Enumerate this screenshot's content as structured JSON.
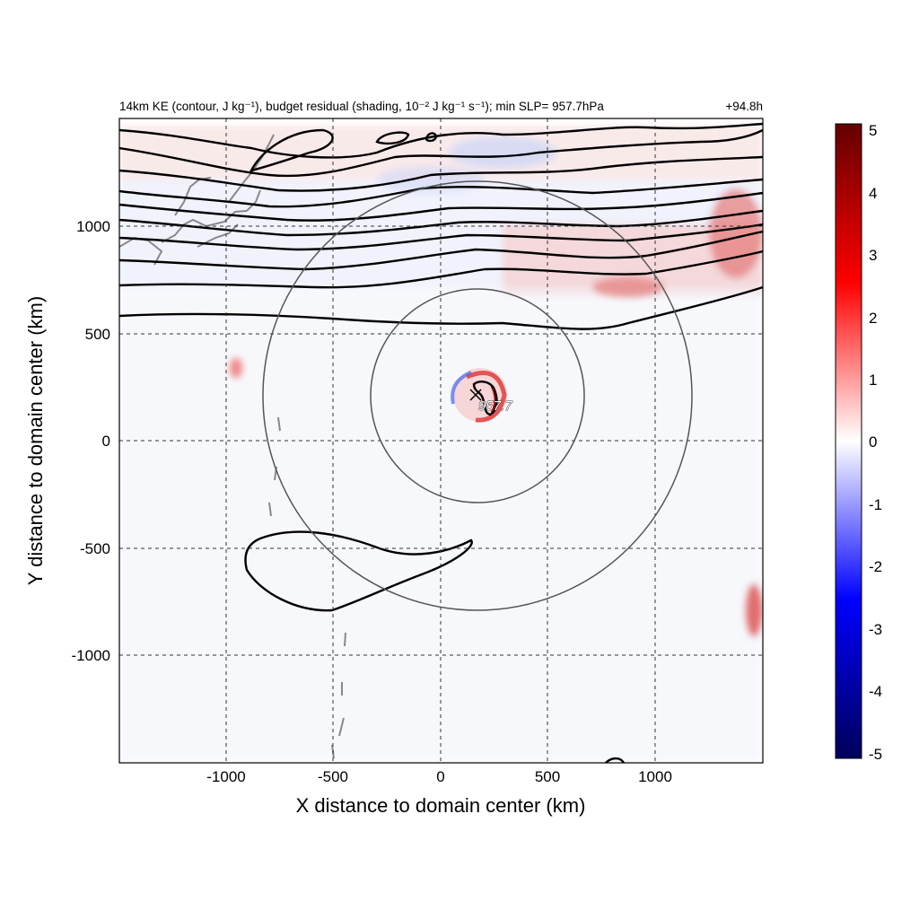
{
  "chart_data": {
    "type": "heatmap",
    "title": "14km KE (contour, J kg⁻¹), budget residual (shading, 10⁻² J kg⁻¹ s⁻¹); min SLP= 957.7hPa",
    "title_right": "+94.8h",
    "xlabel": "X distance to domain center (km)",
    "ylabel": "Y distance to domain center (km)",
    "xlim": [
      -1500,
      1500
    ],
    "ylim": [
      -1500,
      1500
    ],
    "x_ticks": [
      -1000,
      -500,
      0,
      500,
      1000
    ],
    "y_ticks": [
      -1000,
      -500,
      0,
      500,
      1000
    ],
    "grid": true,
    "colorbar": {
      "range": [
        -5,
        5
      ],
      "ticks": [
        5,
        4,
        3,
        2,
        1,
        0,
        -1,
        -2,
        -3,
        -4,
        -5
      ],
      "colors": [
        "#00005a",
        "#0000ff",
        "#ffffff",
        "#ff0000",
        "#640000"
      ]
    },
    "storm_center": {
      "x": 160,
      "y": 210,
      "label": "957.7"
    },
    "range_circles": [
      {
        "center_x": 170,
        "center_y": 210,
        "radius_km": 500
      },
      {
        "center_x": 170,
        "center_y": 210,
        "radius_km": 1000
      }
    ]
  }
}
